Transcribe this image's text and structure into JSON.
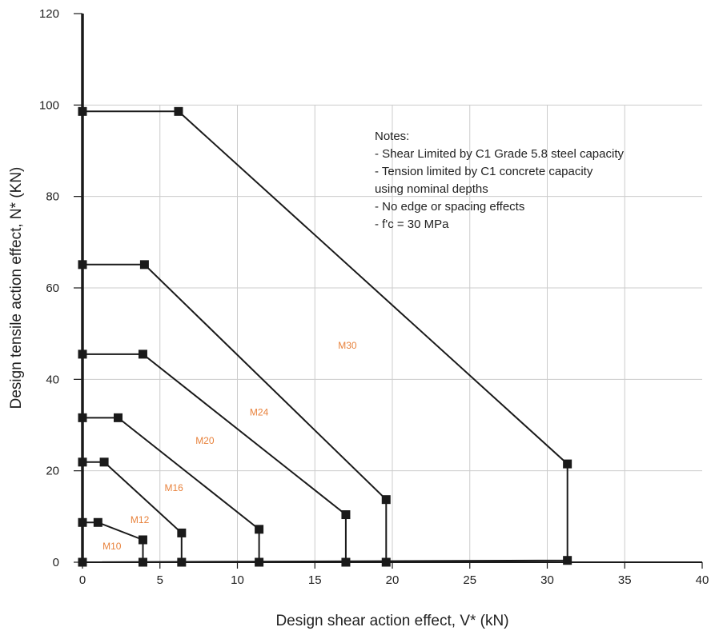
{
  "chart_data": {
    "type": "line",
    "xlabel": "Design shear action effect, V* (kN)",
    "ylabel": "Design tensile action effect, N* (KN)",
    "xlim": [
      0,
      40
    ],
    "ylim": [
      0,
      120
    ],
    "x_ticks": [
      "0",
      "5",
      "10",
      "15",
      "20",
      "25",
      "30",
      "35",
      "40"
    ],
    "y_ticks": [
      "0",
      "20",
      "40",
      "60",
      "80",
      "100",
      "120"
    ],
    "grid": true,
    "notes": [
      "Notes:",
      "- Shear Limited by  C1 Grade 5.8 steel capacity",
      "- Tension limited by C1 concrete capacity",
      "  using nominal depths",
      "- No edge or spacing effects",
      "- f'c = 30 MPa"
    ],
    "series": [
      {
        "name": "M10",
        "label_pos": [
          1.9,
          3.5
        ],
        "points": [
          [
            0,
            8.7
          ],
          [
            1.0,
            8.7
          ],
          [
            3.9,
            4.9
          ],
          [
            3.9,
            0
          ],
          [
            0,
            0
          ]
        ]
      },
      {
        "name": "M12",
        "label_pos": [
          3.7,
          9.3
        ],
        "points": [
          [
            0,
            21.9
          ],
          [
            1.4,
            21.9
          ],
          [
            6.4,
            6.4
          ],
          [
            6.4,
            0
          ],
          [
            0,
            0
          ]
        ]
      },
      {
        "name": "M16",
        "label_pos": [
          5.9,
          16.3
        ],
        "points": [
          [
            0,
            31.6
          ],
          [
            2.3,
            31.6
          ],
          [
            11.4,
            7.2
          ],
          [
            11.4,
            0
          ],
          [
            0,
            0
          ]
        ]
      },
      {
        "name": "M20",
        "label_pos": [
          7.9,
          26.6
        ],
        "points": [
          [
            0,
            45.5
          ],
          [
            3.9,
            45.5
          ],
          [
            17.0,
            10.4
          ],
          [
            17.0,
            0
          ],
          [
            0,
            0
          ]
        ]
      },
      {
        "name": "M24",
        "label_pos": [
          11.4,
          32.8
        ],
        "points": [
          [
            0,
            65.1
          ],
          [
            4.0,
            65.1
          ],
          [
            19.6,
            13.7
          ],
          [
            19.6,
            0
          ],
          [
            0,
            0
          ]
        ]
      },
      {
        "name": "M30",
        "label_pos": [
          17.1,
          47.4
        ],
        "points": [
          [
            0,
            98.6
          ],
          [
            6.2,
            98.6
          ],
          [
            31.3,
            21.5
          ],
          [
            31.3,
            0.4
          ],
          [
            0,
            0
          ]
        ]
      }
    ]
  },
  "colors": {
    "line": "#1a1a1a",
    "grid": "#cccccc",
    "label": "#e8823c"
  }
}
